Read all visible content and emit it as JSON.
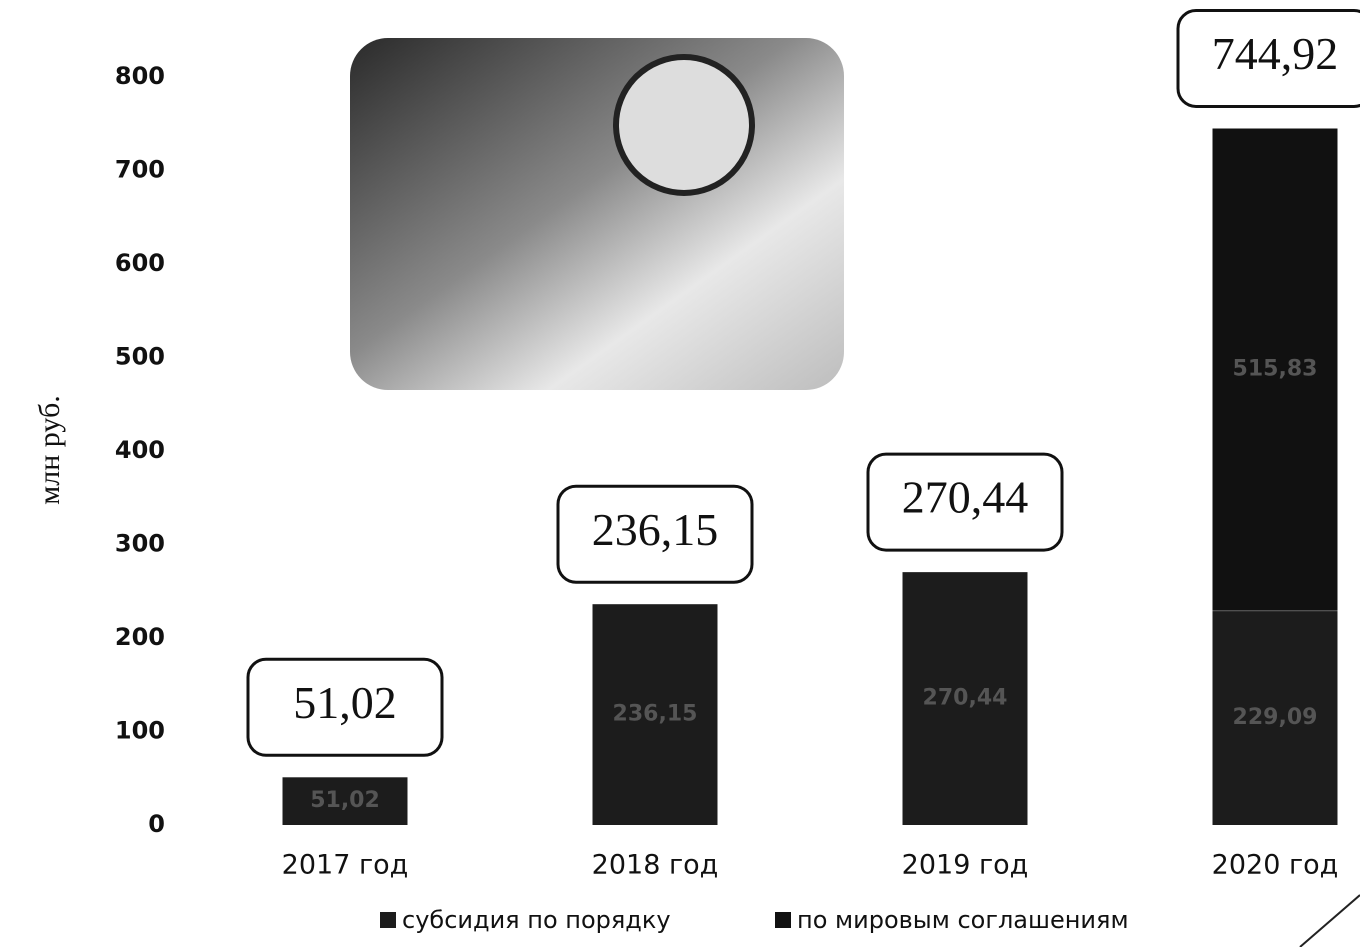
{
  "chart_data": {
    "type": "stacked_bar",
    "y_axis_label": "млн руб.",
    "categories": [
      "2017 год",
      "2018 год",
      "2019 год",
      "2020 год"
    ],
    "series": [
      {
        "name": "субсидия по порядку",
        "color": "#1c1c1c",
        "values": [
          51.02,
          236.15,
          270.44,
          229.09
        ],
        "value_labels": [
          "51,02",
          "236,15",
          "270,44",
          "229,09"
        ]
      },
      {
        "name": "по мировым соглашениям",
        "color": "#111111",
        "values": [
          null,
          null,
          null,
          515.83
        ],
        "value_labels": [
          null,
          null,
          null,
          "515,83"
        ]
      }
    ],
    "totals": [
      51.02,
      236.15,
      270.44,
      744.92
    ],
    "total_labels": [
      "51,02",
      "236,15",
      "270,44",
      "744,92"
    ],
    "ylim": [
      0,
      800
    ],
    "yticks": [
      0,
      100,
      200,
      300,
      400,
      500,
      600,
      700,
      800
    ],
    "legend": "bottom"
  }
}
